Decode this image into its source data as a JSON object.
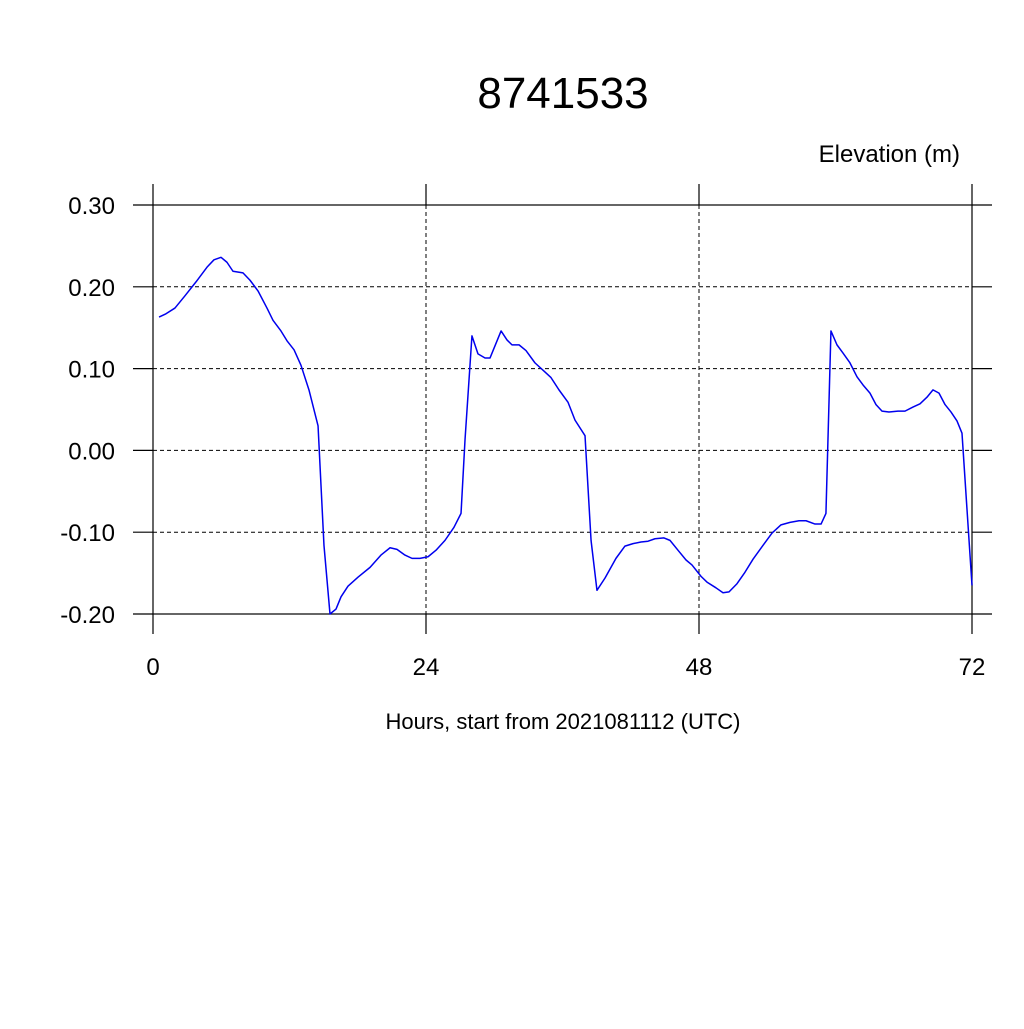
{
  "chart_data": {
    "type": "line",
    "title": "8741533",
    "y_label": "Elevation (m)",
    "x_label": "Hours, start from 2021081112 (UTC)",
    "xlim": [
      0,
      72
    ],
    "xticks": [
      0,
      24,
      48,
      72
    ],
    "ylim": [
      -0.2,
      0.3
    ],
    "yticks": [
      {
        "value": -0.2,
        "label": "-0.20"
      },
      {
        "value": -0.1,
        "label": "-0.10"
      },
      {
        "value": 0,
        "label": "0.00"
      },
      {
        "value": 0.1,
        "label": "0.10"
      },
      {
        "value": 0.2,
        "label": "0.20"
      },
      {
        "value": 0.3,
        "label": "0.30"
      }
    ],
    "grid": true,
    "series": [
      {
        "color": "#0000ee",
        "x": [
          0.53,
          1.14,
          1.93,
          2.81,
          3.78,
          4.75,
          5.36,
          5.98,
          6.5,
          7.03,
          7.91,
          8.53,
          9.23,
          10.02,
          10.55,
          11.25,
          11.78,
          12.4,
          13.01,
          13.71,
          14.51,
          15.03,
          15.56,
          16.09,
          16.53,
          17.14,
          18.02,
          19.08,
          20.04,
          20.84,
          21.45,
          22.15,
          22.77,
          23.47,
          24.18,
          24.88,
          25.67,
          26.46,
          27.08,
          27.43,
          28.04,
          28.57,
          29.19,
          29.63,
          30.6,
          31.12,
          31.56,
          32.18,
          32.79,
          33.58,
          34.37,
          34.99,
          35.69,
          36.48,
          37.1,
          37.98,
          38.51,
          39.03,
          39.74,
          40.7,
          41.49,
          42.2,
          42.9,
          43.52,
          44.13,
          44.92,
          45.45,
          46.15,
          46.86,
          47.38,
          48.18,
          48.7,
          49.49,
          50.11,
          50.64,
          51.34,
          52.04,
          52.75,
          53.63,
          54.42,
          55.21,
          56.0,
          56.79,
          57.41,
          58.2,
          58.73,
          59.16,
          59.6,
          60.13,
          60.66,
          61.27,
          61.89,
          62.42,
          63.03,
          63.56,
          64.09,
          64.7,
          65.49,
          66.11,
          66.81,
          67.43,
          68.04,
          68.57,
          69.1,
          69.63,
          70.15,
          70.68,
          71.12,
          72.0
        ],
        "values": [
          0.163,
          0.167,
          0.174,
          0.189,
          0.206,
          0.224,
          0.233,
          0.236,
          0.23,
          0.219,
          0.217,
          0.208,
          0.195,
          0.174,
          0.159,
          0.146,
          0.134,
          0.123,
          0.104,
          0.074,
          0.03,
          -0.116,
          -0.2,
          -0.194,
          -0.179,
          -0.166,
          -0.155,
          -0.143,
          -0.128,
          -0.119,
          -0.121,
          -0.128,
          -0.132,
          -0.132,
          -0.13,
          -0.122,
          -0.11,
          -0.094,
          -0.077,
          0.013,
          0.14,
          0.118,
          0.113,
          0.113,
          0.146,
          0.135,
          0.129,
          0.129,
          0.122,
          0.107,
          0.097,
          0.089,
          0.074,
          0.059,
          0.037,
          0.018,
          -0.11,
          -0.171,
          -0.156,
          -0.132,
          -0.117,
          -0.114,
          -0.112,
          -0.111,
          -0.108,
          -0.107,
          -0.11,
          -0.122,
          -0.134,
          -0.14,
          -0.154,
          -0.161,
          -0.168,
          -0.174,
          -0.173,
          -0.163,
          -0.149,
          -0.133,
          -0.116,
          -0.101,
          -0.091,
          -0.088,
          -0.086,
          -0.086,
          -0.09,
          -0.09,
          -0.077,
          0.146,
          0.129,
          0.119,
          0.107,
          0.09,
          0.08,
          0.07,
          0.056,
          0.048,
          0.047,
          0.048,
          0.048,
          0.053,
          0.057,
          0.065,
          0.074,
          0.07,
          0.056,
          0.047,
          0.036,
          0.021,
          -0.165
        ]
      }
    ]
  }
}
